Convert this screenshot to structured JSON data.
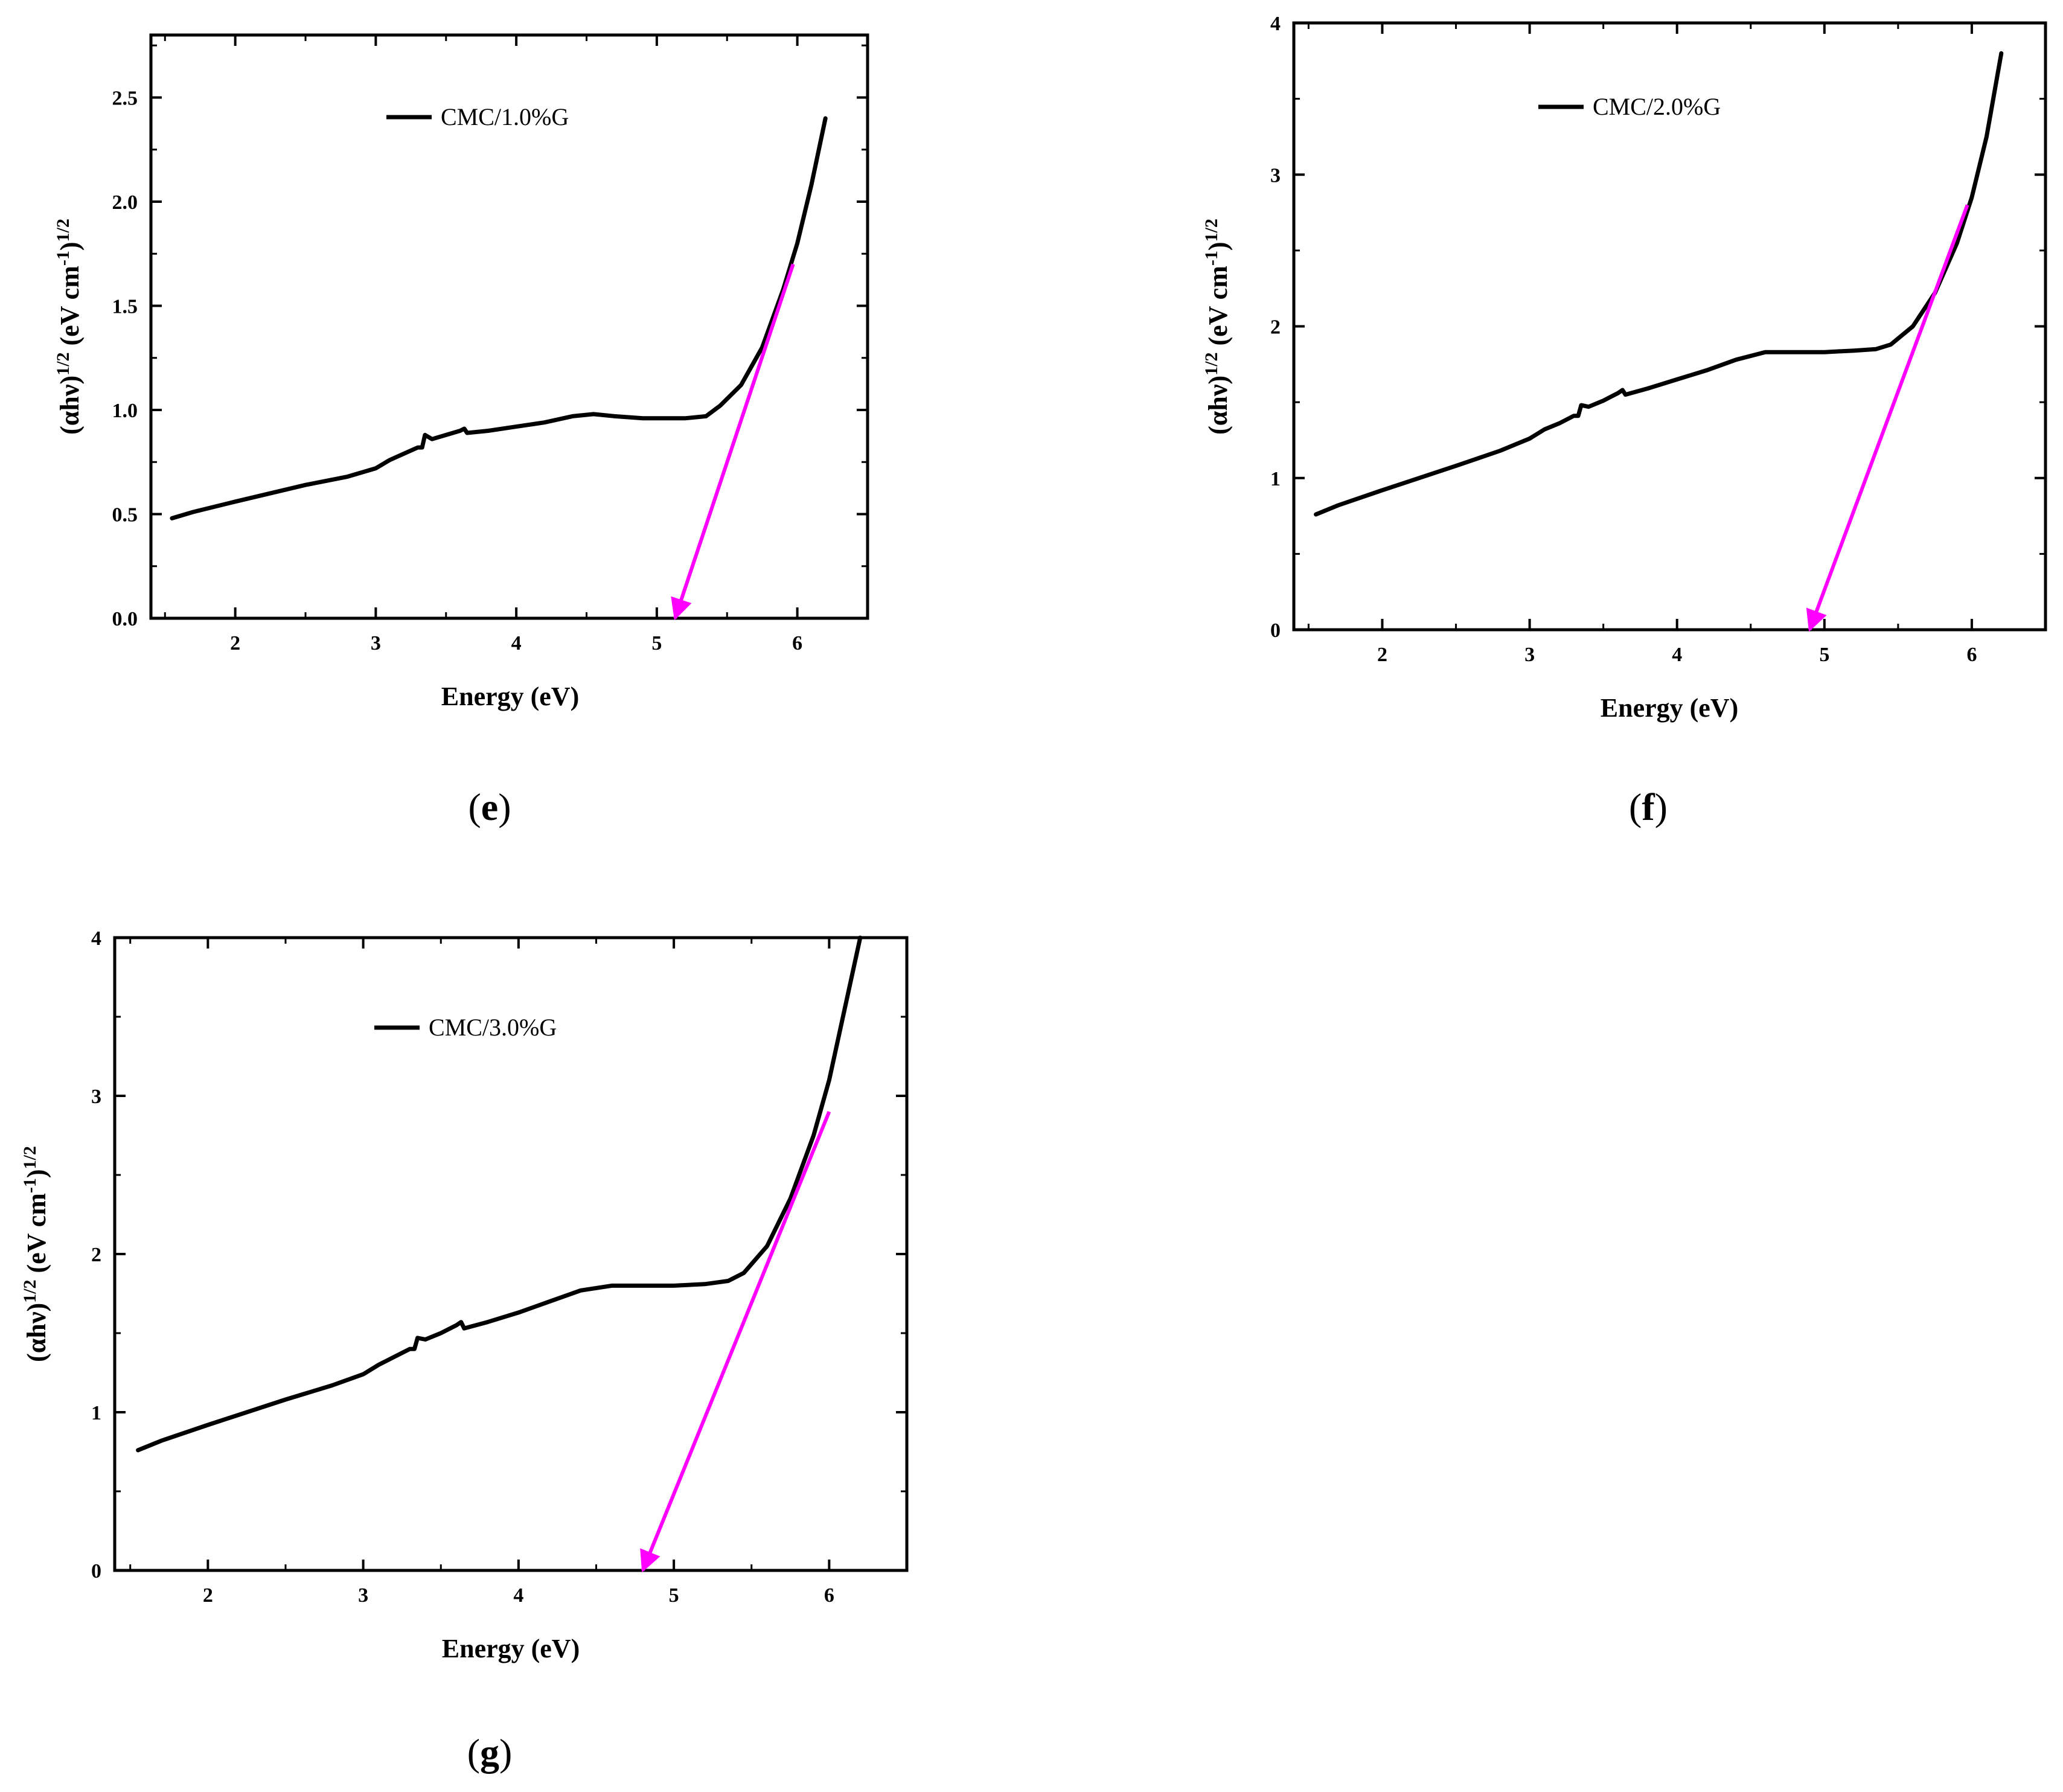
{
  "chart_data": [
    {
      "type": "line",
      "panel": "e",
      "caption_letter": "e",
      "legend": "CMC/1.0%G",
      "xlabel": "Energy (eV)",
      "ylabel_main": "(αhν)",
      "ylabel_sup1": "1/2",
      "ylabel_mid": " (eV cm",
      "ylabel_sup2": "-1",
      "ylabel_end": ")",
      "ylabel_sup3": "1/2",
      "xlim": [
        1.4,
        6.5
      ],
      "ylim": [
        0,
        2.8
      ],
      "xticks": [
        2,
        3,
        4,
        5,
        6
      ],
      "xtick_labels": [
        "2",
        "3",
        "4",
        "5",
        "6"
      ],
      "yticks": [
        0,
        0.5,
        1.0,
        1.5,
        2.0,
        2.5
      ],
      "ytick_labels": [
        "0.0",
        "0.5",
        "1.0",
        "1.5",
        "2.0",
        "2.5"
      ],
      "series": [
        {
          "name": "CMC/1.0%G",
          "color": "#000000",
          "x": [
            1.55,
            1.7,
            2.0,
            2.5,
            2.8,
            3.0,
            3.1,
            3.2,
            3.3,
            3.33,
            3.35,
            3.4,
            3.5,
            3.6,
            3.63,
            3.65,
            3.8,
            4.0,
            4.2,
            4.4,
            4.55,
            4.7,
            4.9,
            5.0,
            5.2,
            5.35,
            5.45,
            5.6,
            5.75,
            5.9,
            6.0,
            6.1,
            6.2
          ],
          "y": [
            0.48,
            0.51,
            0.56,
            0.64,
            0.68,
            0.72,
            0.76,
            0.79,
            0.82,
            0.82,
            0.88,
            0.86,
            0.88,
            0.9,
            0.91,
            0.89,
            0.9,
            0.92,
            0.94,
            0.97,
            0.98,
            0.97,
            0.96,
            0.96,
            0.96,
            0.97,
            1.02,
            1.12,
            1.3,
            1.58,
            1.8,
            2.08,
            2.4
          ]
        }
      ],
      "tangent": {
        "color": "#ff00ff",
        "x": [
          5.97,
          5.13
        ],
        "y": [
          1.7,
          0.0
        ]
      }
    },
    {
      "type": "line",
      "panel": "f",
      "caption_letter": "f",
      "legend": "CMC/2.0%G",
      "xlabel": "Energy (eV)",
      "ylabel_main": "(αhν)",
      "ylabel_sup1": "1/2",
      "ylabel_mid": " (eV cm",
      "ylabel_sup2": "-1",
      "ylabel_end": ")",
      "ylabel_sup3": "1/2",
      "xlim": [
        1.4,
        6.5
      ],
      "ylim": [
        0,
        4
      ],
      "xticks": [
        2,
        3,
        4,
        5,
        6
      ],
      "xtick_labels": [
        "2",
        "3",
        "4",
        "5",
        "6"
      ],
      "yticks": [
        0,
        1,
        2,
        3,
        4
      ],
      "ytick_labels": [
        "0",
        "1",
        "2",
        "3",
        "4"
      ],
      "series": [
        {
          "name": "CMC/2.0%G",
          "color": "#000000",
          "x": [
            1.55,
            1.7,
            2.0,
            2.5,
            2.8,
            3.0,
            3.1,
            3.2,
            3.3,
            3.33,
            3.35,
            3.4,
            3.5,
            3.6,
            3.63,
            3.65,
            3.8,
            4.0,
            4.2,
            4.4,
            4.6,
            4.8,
            5.0,
            5.2,
            5.35,
            5.45,
            5.6,
            5.75,
            5.9,
            6.0,
            6.1,
            6.2
          ],
          "y": [
            0.76,
            0.82,
            0.92,
            1.08,
            1.18,
            1.26,
            1.32,
            1.36,
            1.41,
            1.41,
            1.48,
            1.47,
            1.51,
            1.56,
            1.58,
            1.55,
            1.59,
            1.65,
            1.71,
            1.78,
            1.83,
            1.83,
            1.83,
            1.84,
            1.85,
            1.88,
            2.0,
            2.22,
            2.55,
            2.85,
            3.25,
            3.8
          ]
        }
      ],
      "tangent": {
        "color": "#ff00ff",
        "x": [
          5.97,
          4.9
        ],
        "y": [
          2.8,
          0.0
        ]
      }
    },
    {
      "type": "line",
      "panel": "g",
      "caption_letter": "g",
      "legend": "CMC/3.0%G",
      "xlabel": "Energy (eV)",
      "ylabel_main": "(αhν)",
      "ylabel_sup1": "1/2",
      "ylabel_mid": " (eV cm",
      "ylabel_sup2": "-1",
      "ylabel_end": ")",
      "ylabel_sup3": "1/2",
      "xlim": [
        1.4,
        6.5
      ],
      "ylim": [
        0,
        4
      ],
      "xticks": [
        2,
        3,
        4,
        5,
        6
      ],
      "xtick_labels": [
        "2",
        "3",
        "4",
        "5",
        "6"
      ],
      "yticks": [
        0,
        1,
        2,
        3,
        4
      ],
      "ytick_labels": [
        "0",
        "1",
        "2",
        "3",
        "4"
      ],
      "series": [
        {
          "name": "CMC/3.0%G",
          "color": "#000000",
          "x": [
            1.55,
            1.7,
            2.0,
            2.5,
            2.8,
            3.0,
            3.1,
            3.2,
            3.3,
            3.33,
            3.35,
            3.4,
            3.5,
            3.6,
            3.63,
            3.65,
            3.8,
            4.0,
            4.2,
            4.4,
            4.6,
            4.8,
            5.0,
            5.2,
            5.35,
            5.45,
            5.6,
            5.75,
            5.9,
            6.0,
            6.1,
            6.2
          ],
          "y": [
            0.76,
            0.82,
            0.92,
            1.08,
            1.17,
            1.24,
            1.3,
            1.35,
            1.4,
            1.4,
            1.47,
            1.46,
            1.5,
            1.55,
            1.57,
            1.53,
            1.57,
            1.63,
            1.7,
            1.77,
            1.8,
            1.8,
            1.8,
            1.81,
            1.83,
            1.88,
            2.05,
            2.35,
            2.75,
            3.1,
            3.55,
            4.0
          ]
        }
      ],
      "tangent": {
        "color": "#ff00ff",
        "x": [
          6.0,
          4.8
        ],
        "y": [
          2.9,
          0.0
        ]
      }
    }
  ]
}
